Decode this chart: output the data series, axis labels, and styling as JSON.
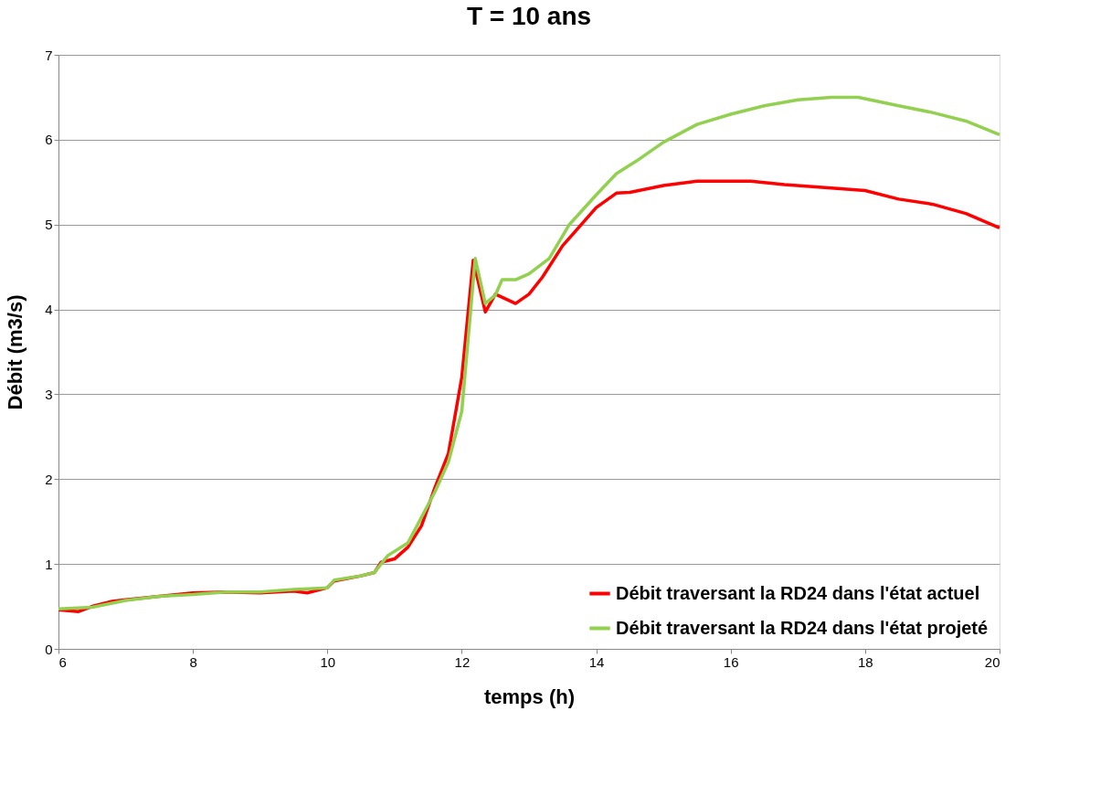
{
  "chart_data": {
    "type": "line",
    "title": "T = 10 ans",
    "xlabel": "temps (h)",
    "ylabel": "Débit (m3/s)",
    "xlim": [
      6,
      20
    ],
    "xticks": [
      6,
      8,
      10,
      12,
      14,
      16,
      18,
      20
    ],
    "ylim": [
      0,
      7
    ],
    "yticks": [
      0,
      1,
      2,
      3,
      4,
      5,
      6,
      7
    ],
    "grid": "y",
    "legend": "bottom right",
    "marker": "none",
    "line_style": "solid",
    "series": [
      {
        "name": "Débit traversant la RD24 dans l'état actuel",
        "color": "#ff0000",
        "x": [
          6.0,
          6.3,
          6.5,
          6.8,
          7.0,
          7.5,
          8.0,
          8.5,
          9.0,
          9.5,
          9.7,
          10.0,
          10.1,
          10.5,
          10.7,
          10.8,
          11.0,
          11.2,
          11.4,
          11.6,
          11.8,
          12.0,
          12.17,
          12.35,
          12.5,
          12.8,
          13.0,
          13.2,
          13.5,
          14.0,
          14.3,
          14.5,
          15.0,
          15.5,
          16.0,
          16.3,
          16.8,
          17.5,
          18.0,
          18.5,
          19.0,
          19.5,
          20.0
        ],
        "values": [
          0.46,
          0.44,
          0.5,
          0.56,
          0.58,
          0.62,
          0.66,
          0.67,
          0.66,
          0.68,
          0.66,
          0.72,
          0.8,
          0.86,
          0.9,
          1.02,
          1.06,
          1.2,
          1.45,
          1.9,
          2.3,
          3.2,
          4.58,
          3.97,
          4.18,
          4.07,
          4.18,
          4.38,
          4.75,
          5.2,
          5.37,
          5.38,
          5.46,
          5.51,
          5.51,
          5.51,
          5.47,
          5.43,
          5.4,
          5.3,
          5.24,
          5.13,
          4.96
        ]
      },
      {
        "name": "Débit traversant la RD24 dans l'état projeté",
        "color": "#92d050",
        "x": [
          6.0,
          6.5,
          7.0,
          7.5,
          8.0,
          8.5,
          9.0,
          9.5,
          10.0,
          10.1,
          10.5,
          10.7,
          10.9,
          11.2,
          11.4,
          11.6,
          11.8,
          12.0,
          12.2,
          12.35,
          12.5,
          12.6,
          12.8,
          13.0,
          13.3,
          13.6,
          14.0,
          14.3,
          14.6,
          15.0,
          15.5,
          16.0,
          16.5,
          17.0,
          17.5,
          17.9,
          18.5,
          19.0,
          19.5,
          20.0
        ],
        "values": [
          0.47,
          0.49,
          0.57,
          0.62,
          0.64,
          0.67,
          0.67,
          0.7,
          0.72,
          0.81,
          0.86,
          0.9,
          1.1,
          1.25,
          1.55,
          1.85,
          2.2,
          2.8,
          4.6,
          4.07,
          4.17,
          4.35,
          4.35,
          4.42,
          4.6,
          5.0,
          5.35,
          5.6,
          5.75,
          5.97,
          6.18,
          6.3,
          6.4,
          6.47,
          6.5,
          6.5,
          6.4,
          6.32,
          6.22,
          6.06
        ]
      }
    ]
  }
}
